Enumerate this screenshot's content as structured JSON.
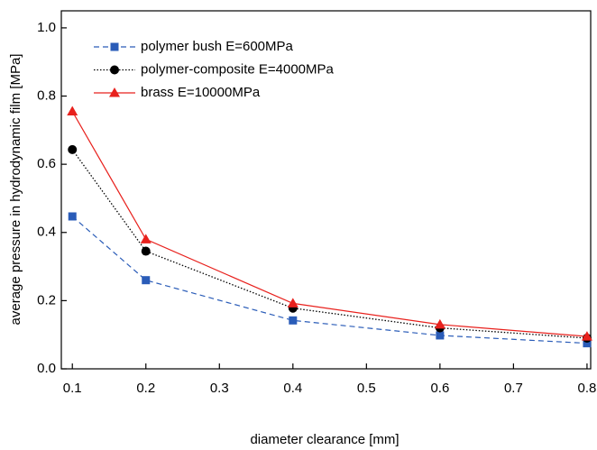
{
  "chart_data": {
    "type": "line",
    "x_label": "diameter clearance [mm]",
    "y_label": "average pressure in hydrodynamic film [MPa]",
    "x": [
      0.1,
      0.2,
      0.4,
      0.6,
      0.8
    ],
    "series": [
      {
        "name": "polymer bush E=600MPa",
        "color": "#2a5cb8",
        "line_style": "dashed",
        "marker": "square",
        "values": [
          0.447,
          0.26,
          0.142,
          0.098,
          0.075
        ]
      },
      {
        "name": "polymer-composite E=4000MPa",
        "color": "#000000",
        "line_style": "dotted",
        "marker": "circle",
        "values": [
          0.643,
          0.345,
          0.178,
          0.12,
          0.09
        ]
      },
      {
        "name": "brass E=10000MPa",
        "color": "#e8211d",
        "line_style": "solid",
        "marker": "triangle",
        "values": [
          0.755,
          0.38,
          0.192,
          0.13,
          0.095
        ]
      }
    ],
    "xlim": [
      0.085,
      0.805
    ],
    "ylim": [
      0,
      1.05
    ],
    "xticks": [
      0.1,
      0.2,
      0.3,
      0.4,
      0.5,
      0.6,
      0.7,
      0.8
    ],
    "yticks": [
      {
        "value": 0,
        "label": "0.0"
      },
      0.2,
      0.4,
      0.6,
      0.8,
      {
        "value": 1,
        "label": "1.0"
      }
    ],
    "grid": false,
    "legend": "upper left"
  }
}
